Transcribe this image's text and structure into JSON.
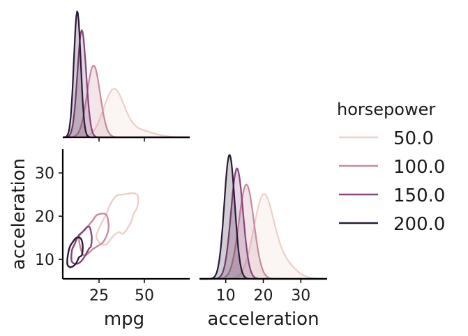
{
  "chart_data": {
    "type": "pairgrid-kde",
    "variables": [
      "mpg",
      "acceleration"
    ],
    "hue": {
      "name": "horsepower",
      "levels": [
        {
          "label": "50.0",
          "color": "#ecd0c7"
        },
        {
          "label": "100.0",
          "color": "#c9899f"
        },
        {
          "label": "150.0",
          "color": "#85457a"
        },
        {
          "label": "200.0",
          "color": "#2a1a38"
        }
      ]
    },
    "panels": {
      "mpg_diag": {
        "xlim": [
          5,
          75
        ],
        "series": [
          {
            "level": "50.0",
            "peaks": [
              {
                "mean": 33,
                "sd": 5.5,
                "height": 0.36
              },
              {
                "mean": 45,
                "sd": 9,
                "height": 0.06
              }
            ]
          },
          {
            "level": "100.0",
            "peaks": [
              {
                "mean": 22,
                "sd": 3.6,
                "height": 0.57
              }
            ]
          },
          {
            "level": "150.0",
            "peaks": [
              {
                "mean": 15.5,
                "sd": 2.4,
                "height": 0.85
              }
            ]
          },
          {
            "level": "200.0",
            "peaks": [
              {
                "mean": 13,
                "sd": 1.9,
                "height": 1.0
              }
            ]
          }
        ]
      },
      "accel_diag": {
        "xlim": [
          3,
          37
        ],
        "xticks": [
          10,
          20,
          30
        ],
        "xlabel": "acceleration",
        "series": [
          {
            "level": "50.0",
            "peaks": [
              {
                "mean": 20,
                "sd": 2.6,
                "height": 0.64
              },
              {
                "mean": 25,
                "sd": 3.2,
                "height": 0.14
              }
            ]
          },
          {
            "level": "100.0",
            "peaks": [
              {
                "mean": 15.5,
                "sd": 2.0,
                "height": 0.76
              }
            ]
          },
          {
            "level": "150.0",
            "peaks": [
              {
                "mean": 13,
                "sd": 1.6,
                "height": 0.89
              }
            ]
          },
          {
            "level": "200.0",
            "peaks": [
              {
                "mean": 11,
                "sd": 1.4,
                "height": 1.0
              }
            ]
          }
        ]
      },
      "scatter_kde": {
        "xlim": [
          5,
          75
        ],
        "ylim": [
          5.5,
          35.5
        ],
        "xticks": [
          25,
          50
        ],
        "yticks": [
          10,
          20,
          30
        ],
        "xlabel": "mpg",
        "ylabel": "acceleration",
        "contours": [
          {
            "level": "50.0",
            "points": [
              [
                23.5,
                15.5
              ],
              [
                26.5,
                18.5
              ],
              [
                29,
                20.5
              ],
              [
                31.5,
                23
              ],
              [
                34.5,
                24.7
              ],
              [
                38,
                25
              ],
              [
                44,
                25.3
              ],
              [
                46.5,
                24.5
              ],
              [
                46,
                22
              ],
              [
                44,
                20.5
              ],
              [
                42.5,
                18.5
              ],
              [
                38.5,
                16
              ],
              [
                36,
                16.3
              ],
              [
                33,
                15.5
              ],
              [
                29,
                13.5
              ],
              [
                25.5,
                13.8
              ]
            ]
          },
          {
            "level": "100.0",
            "points": [
              [
                14,
                15
              ],
              [
                17.5,
                17
              ],
              [
                21.5,
                19
              ],
              [
                24,
                20.3
              ],
              [
                28.5,
                20.5
              ],
              [
                30,
                19
              ],
              [
                30,
                16.5
              ],
              [
                28,
                14.5
              ],
              [
                26.5,
                13.7
              ],
              [
                22,
                12.5
              ],
              [
                16.5,
                11
              ]
            ]
          },
          {
            "level": "150.0",
            "points": [
              [
                10,
                12
              ],
              [
                11.5,
                13.5
              ],
              [
                12.5,
                14.5
              ],
              [
                14,
                15.7
              ],
              [
                15.5,
                16.2
              ],
              [
                18.5,
                17.5
              ],
              [
                20,
                17.3
              ],
              [
                21,
                15
              ],
              [
                20.5,
                13
              ],
              [
                19.5,
                12.5
              ],
              [
                16,
                10
              ],
              [
                13,
                9
              ],
              [
                10,
                9.5
              ]
            ]
          },
          {
            "level": "200.0",
            "points": [
              [
                7.5,
                9
              ],
              [
                8,
                11.5
              ],
              [
                9,
                13
              ],
              [
                10.5,
                14
              ],
              [
                12.5,
                15
              ],
              [
                15,
                14.8
              ],
              [
                16,
                13
              ],
              [
                15.5,
                11
              ],
              [
                14,
                10.5
              ],
              [
                12.5,
                9.2
              ],
              [
                11,
                8.5
              ],
              [
                9,
                8.2
              ]
            ]
          }
        ]
      }
    },
    "legend": {
      "title": "horsepower",
      "placement": "right"
    }
  }
}
